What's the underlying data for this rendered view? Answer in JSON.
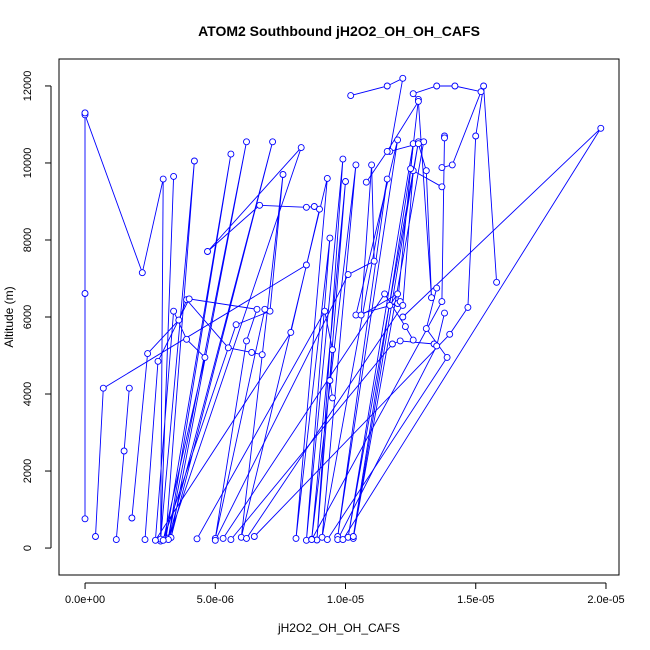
{
  "chart_data": {
    "type": "scatter",
    "title": "ATOM2 Southbound jH2O2_OH_OH_CAFS",
    "xlabel": "jH2O2_OH_OH_CAFS",
    "ylabel": "Altitude (m)",
    "xlim": [
      -1e-06,
      2.05e-05
    ],
    "ylim": [
      -700,
      12700
    ],
    "xticks": [
      0,
      5e-06,
      1e-05,
      1.5e-05,
      2e-05
    ],
    "xtick_labels": [
      "0.0e+00",
      "5.0e-06",
      "1.0e-05",
      "1.5e-05",
      "2.0e-05"
    ],
    "yticks": [
      0,
      2000,
      4000,
      6000,
      8000,
      10000,
      12000
    ],
    "ytick_labels": [
      "0",
      "2000",
      "4000",
      "6000",
      "8000",
      "10000",
      "12000"
    ],
    "grid": false,
    "line_color": "#0000ff",
    "marker": "open-circle",
    "series": [
      {
        "points": [
          [
            0.0,
            11300
          ],
          [
            0.0,
            11250
          ],
          [
            2.2e-06,
            7150
          ],
          [
            3e-06,
            9580
          ],
          [
            2.9e-06,
            180
          ],
          [
            3.4e-06,
            9650
          ],
          [
            2.9e-06,
            230
          ],
          [
            4.2e-06,
            10050
          ],
          [
            3.1e-06,
            240
          ],
          [
            5.6e-06,
            10230
          ],
          [
            3.2e-06,
            260
          ],
          [
            6.2e-06,
            10550
          ],
          [
            3.3e-06,
            270
          ],
          [
            7.2e-06,
            10550
          ],
          [
            3.2e-06,
            220
          ],
          [
            8.3e-06,
            10400
          ],
          [
            4.7e-06,
            7700
          ],
          [
            6.7e-06,
            8900
          ],
          [
            8.5e-06,
            8850
          ],
          [
            8.8e-06,
            8870
          ],
          [
            9e-06,
            8800
          ],
          [
            7.9e-06,
            5600
          ],
          [
            2.7e-06,
            200
          ],
          [
            3.4e-06,
            6150
          ],
          [
            3.9e-06,
            5420
          ],
          [
            4.6e-06,
            4950
          ],
          [
            3e-06,
            200
          ],
          [
            5.8e-06,
            5800
          ],
          [
            7.1e-06,
            6150
          ],
          [
            7.6e-06,
            9700
          ],
          [
            6e-06,
            280
          ],
          [
            9.3e-06,
            9600
          ],
          [
            8.1e-06,
            250
          ],
          [
            9.4e-06,
            8050
          ],
          [
            8.5e-06,
            200
          ],
          [
            9.9e-06,
            10100
          ],
          [
            8.9e-06,
            210
          ],
          [
            1e-05,
            9520
          ],
          [
            8.7e-06,
            230
          ],
          [
            1.04e-05,
            9950
          ],
          [
            9.1e-06,
            280
          ],
          [
            1.16e-05,
            9580
          ],
          [
            9.7e-06,
            300
          ],
          [
            1.2e-05,
            10600
          ],
          [
            1.04e-05,
            6050
          ],
          [
            1.2e-05,
            6350
          ],
          [
            1.26e-05,
            10500
          ],
          [
            1.01e-05,
            280
          ],
          [
            1.28e-05,
            10550
          ],
          [
            1.03e-05,
            250
          ],
          [
            1.3e-05,
            10550
          ]
        ]
      },
      {
        "points": [
          [
            0.0,
            760
          ],
          [
            0.0,
            6610
          ],
          [
            0.0,
            11300
          ]
        ]
      },
      {
        "points": [
          [
            4e-07,
            300
          ],
          [
            7e-07,
            4150
          ],
          [
            8.5e-06,
            7350
          ]
        ]
      },
      {
        "points": [
          [
            1.2e-06,
            220
          ],
          [
            1.5e-06,
            2520
          ],
          [
            1.7e-06,
            4150
          ]
        ]
      },
      {
        "points": [
          [
            1.8e-06,
            780
          ],
          [
            2.4e-06,
            5050
          ],
          [
            3.6e-06,
            5920
          ],
          [
            3.9e-06,
            6450
          ],
          [
            5.5e-06,
            5200
          ],
          [
            6.4e-06,
            5080
          ],
          [
            6.8e-06,
            5020
          ]
        ]
      },
      {
        "points": [
          [
            2.3e-06,
            220
          ],
          [
            2.8e-06,
            4850
          ],
          [
            4e-06,
            6470
          ],
          [
            6.6e-06,
            6200
          ],
          [
            6.2e-06,
            5380
          ],
          [
            5e-06,
            250
          ],
          [
            6.9e-06,
            6200
          ]
        ]
      },
      {
        "points": [
          [
            4.3e-06,
            240
          ],
          [
            9.2e-06,
            6150
          ],
          [
            9.5e-06,
            5150
          ],
          [
            9.4e-06,
            4350
          ],
          [
            9.5e-06,
            3900
          ]
        ]
      },
      {
        "points": [
          [
            5e-06,
            200
          ],
          [
            1.01e-05,
            7100
          ],
          [
            1.11e-05,
            7450
          ],
          [
            1.1e-05,
            9950
          ],
          [
            1.06e-05,
            6050
          ],
          [
            1.2e-05,
            6600
          ],
          [
            1.17e-05,
            6300
          ],
          [
            1.21e-05,
            6400
          ]
        ]
      },
      {
        "points": [
          [
            5.3e-06,
            250
          ],
          [
            1.15e-05,
            6600
          ],
          [
            1.23e-05,
            5750
          ],
          [
            1.26e-05,
            5400
          ]
        ]
      },
      {
        "points": [
          [
            5.6e-06,
            220
          ],
          [
            1.18e-05,
            5300
          ],
          [
            1.21e-05,
            5380
          ],
          [
            1.34e-05,
            5300
          ]
        ]
      },
      {
        "points": [
          [
            6.2e-06,
            250
          ],
          [
            1.22e-05,
            6300
          ],
          [
            1.26e-05,
            9800
          ],
          [
            1.37e-05,
            9380
          ]
        ]
      },
      {
        "points": [
          [
            6.5e-06,
            300
          ],
          [
            1.4e-05,
            5550
          ],
          [
            1.47e-05,
            6250
          ],
          [
            1.5e-05,
            10700
          ],
          [
            1.53e-05,
            12000
          ],
          [
            1.58e-05,
            6900
          ]
        ]
      },
      {
        "points": [
          [
            8.7e-06,
            220
          ],
          [
            1.37e-05,
            6400
          ],
          [
            1.38e-05,
            10700
          ],
          [
            1.38e-05,
            10650
          ]
        ]
      },
      {
        "points": [
          [
            9.3e-06,
            220
          ],
          [
            1.39e-05,
            4950
          ],
          [
            1.31e-05,
            5700
          ],
          [
            1.35e-05,
            6750
          ]
        ]
      },
      {
        "points": [
          [
            9.7e-06,
            220
          ],
          [
            1.35e-05,
            5250
          ],
          [
            1.38e-05,
            6100
          ]
        ]
      },
      {
        "points": [
          [
            1.03e-05,
            300
          ],
          [
            1.25e-05,
            9850
          ],
          [
            1.28e-05,
            11650
          ],
          [
            1.26e-05,
            11800
          ],
          [
            1.35e-05,
            12000
          ],
          [
            1.42e-05,
            12000
          ],
          [
            1.52e-05,
            11850
          ],
          [
            1.41e-05,
            9950
          ],
          [
            1.37e-05,
            9880
          ]
        ]
      },
      {
        "points": [
          [
            9.9e-06,
            220
          ],
          [
            1.98e-05,
            10900
          ],
          [
            1.22e-05,
            6000
          ]
        ]
      },
      {
        "points": [
          [
            1.02e-05,
            11750
          ],
          [
            1.16e-05,
            12000
          ],
          [
            1.22e-05,
            12200
          ],
          [
            1.17e-05,
            10300
          ],
          [
            1.28e-05,
            10500
          ],
          [
            1.31e-05,
            9800
          ],
          [
            1.33e-05,
            6500
          ],
          [
            1.28e-05,
            11600
          ],
          [
            1.16e-05,
            10300
          ],
          [
            1.08e-05,
            9500
          ]
        ]
      }
    ]
  }
}
